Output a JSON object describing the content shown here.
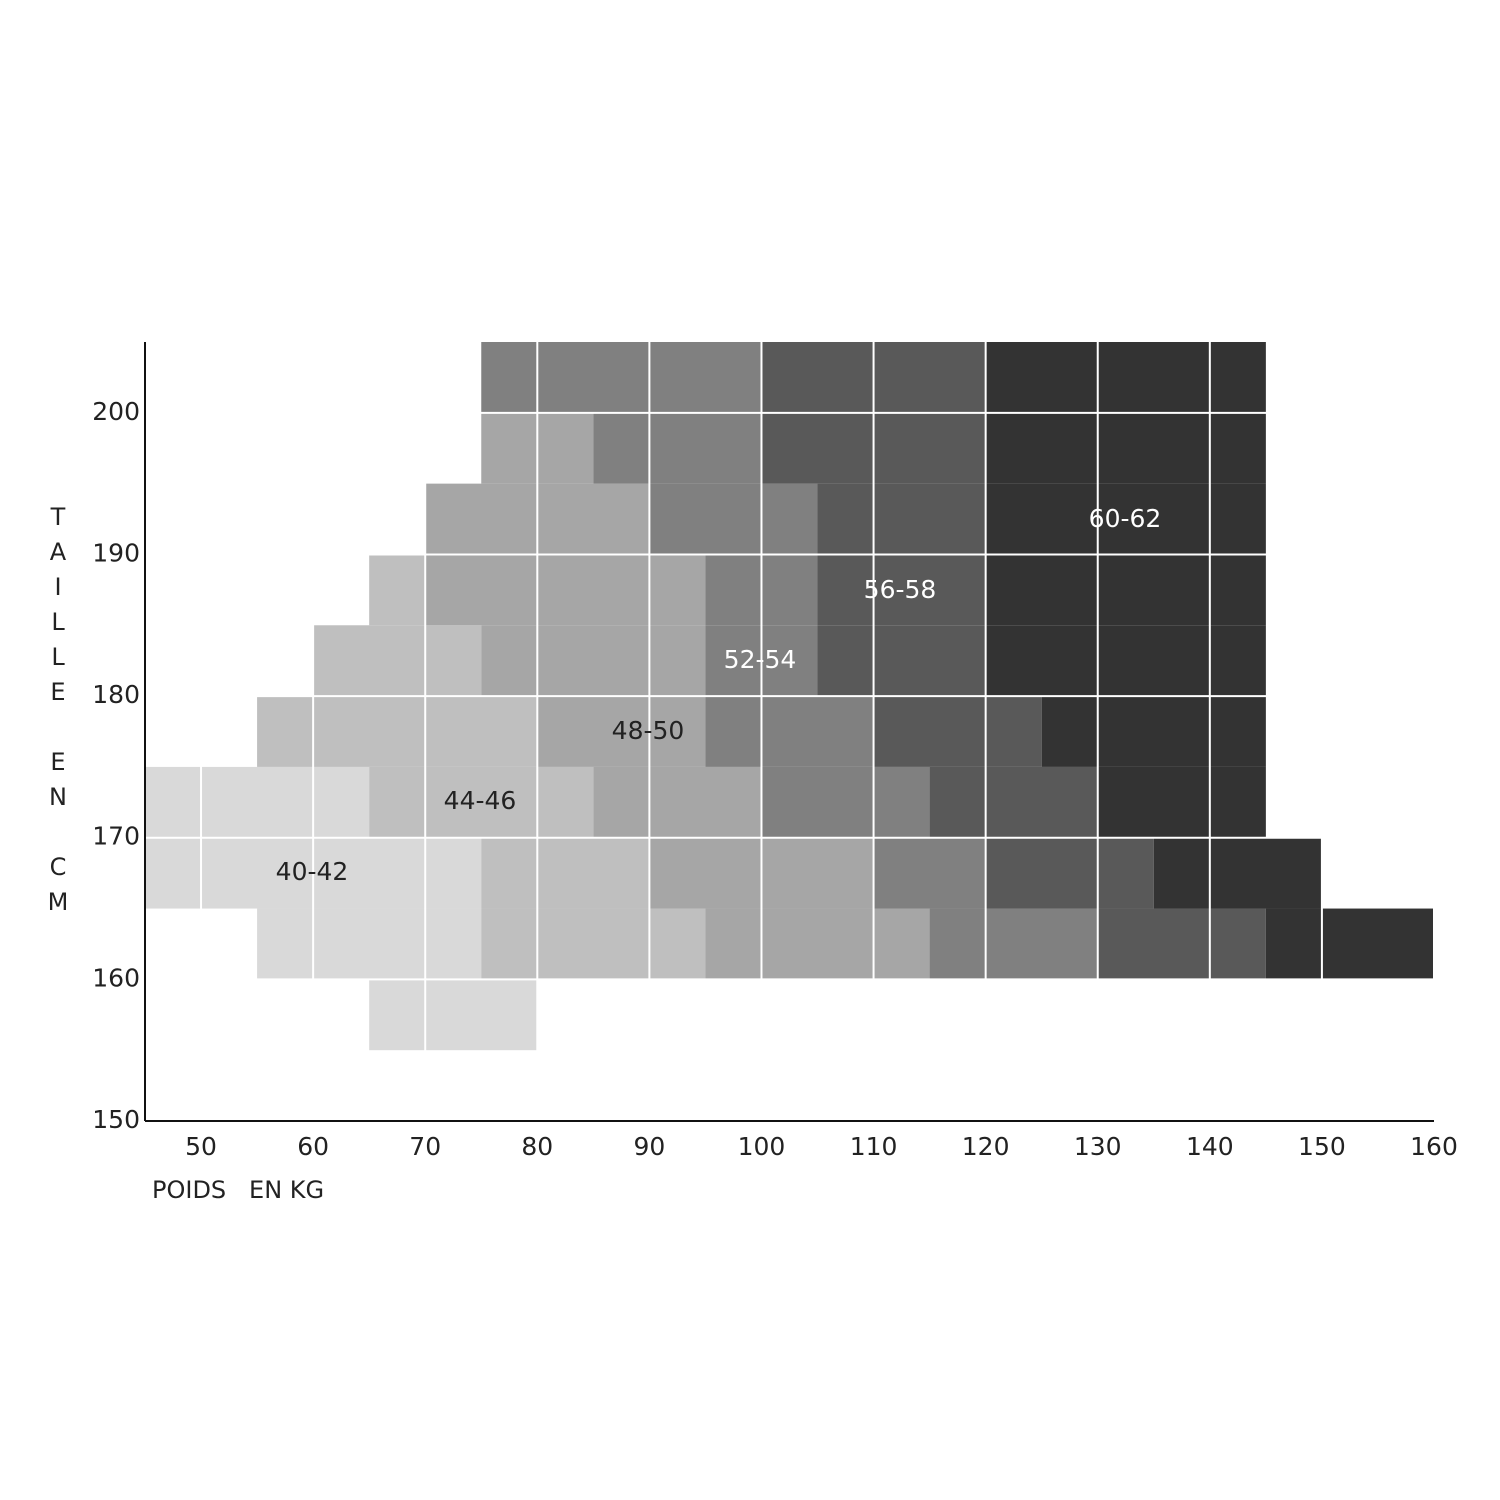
{
  "chart_data": {
    "type": "region",
    "x_label": "POIDS   EN KG",
    "y_label": "TAILLE EN CM",
    "xlim": [
      45,
      160
    ],
    "ylim": [
      150,
      205
    ],
    "xticks": [
      50,
      60,
      70,
      80,
      90,
      100,
      110,
      120,
      130,
      140,
      150,
      160
    ],
    "yticks": [
      150,
      160,
      170,
      180,
      190,
      200
    ],
    "grid": true,
    "grid_color": "#ffffff",
    "series": [
      {
        "name": "40-42",
        "color": "#d9d9d9",
        "label_color": "#222222",
        "rects": [
          [
            65,
            80,
            155,
            160
          ],
          [
            55,
            75,
            160,
            165
          ],
          [
            45,
            75,
            165,
            170
          ],
          [
            45,
            65,
            170,
            175
          ]
        ]
      },
      {
        "name": "44-46",
        "color": "#bfbfbf",
        "label_color": "#222222",
        "rects": [
          [
            75,
            95,
            160,
            165
          ],
          [
            75,
            90,
            165,
            170
          ],
          [
            65,
            85,
            170,
            175
          ],
          [
            55,
            80,
            175,
            180
          ],
          [
            60,
            75,
            180,
            185
          ],
          [
            65,
            70,
            185,
            190
          ]
        ]
      },
      {
        "name": "48-50",
        "color": "#a6a6a6",
        "label_color": "#222222",
        "rects": [
          [
            95,
            115,
            160,
            165
          ],
          [
            90,
            110,
            165,
            170
          ],
          [
            85,
            100,
            170,
            175
          ],
          [
            80,
            95,
            175,
            180
          ],
          [
            75,
            95,
            180,
            185
          ],
          [
            70,
            95,
            185,
            190
          ],
          [
            70,
            90,
            190,
            195
          ],
          [
            75,
            85,
            195,
            200
          ]
        ]
      },
      {
        "name": "52-54",
        "color": "#808080",
        "label_color": "#ffffff",
        "rects": [
          [
            115,
            130,
            160,
            165
          ],
          [
            110,
            120,
            165,
            170
          ],
          [
            100,
            115,
            170,
            175
          ],
          [
            95,
            110,
            175,
            180
          ],
          [
            95,
            105,
            180,
            185
          ],
          [
            95,
            105,
            185,
            190
          ],
          [
            90,
            105,
            190,
            195
          ],
          [
            85,
            100,
            195,
            200
          ],
          [
            75,
            100,
            200,
            205
          ]
        ]
      },
      {
        "name": "56-58",
        "color": "#595959",
        "label_color": "#ffffff",
        "rects": [
          [
            130,
            145,
            160,
            165
          ],
          [
            120,
            135,
            165,
            170
          ],
          [
            115,
            130,
            170,
            175
          ],
          [
            110,
            125,
            175,
            180
          ],
          [
            105,
            120,
            180,
            185
          ],
          [
            105,
            120,
            185,
            190
          ],
          [
            105,
            120,
            190,
            195
          ],
          [
            100,
            120,
            195,
            200
          ],
          [
            100,
            120,
            200,
            205
          ]
        ]
      },
      {
        "name": "60-62",
        "color": "#333333",
        "label_color": "#ffffff",
        "rects": [
          [
            145,
            160,
            160,
            165
          ],
          [
            135,
            150,
            165,
            170
          ],
          [
            130,
            145,
            170,
            175
          ],
          [
            125,
            145,
            175,
            180
          ],
          [
            120,
            145,
            180,
            185
          ],
          [
            120,
            145,
            185,
            190
          ],
          [
            120,
            145,
            190,
            195
          ],
          [
            120,
            145,
            195,
            200
          ],
          [
            120,
            145,
            200,
            205
          ]
        ]
      }
    ]
  }
}
